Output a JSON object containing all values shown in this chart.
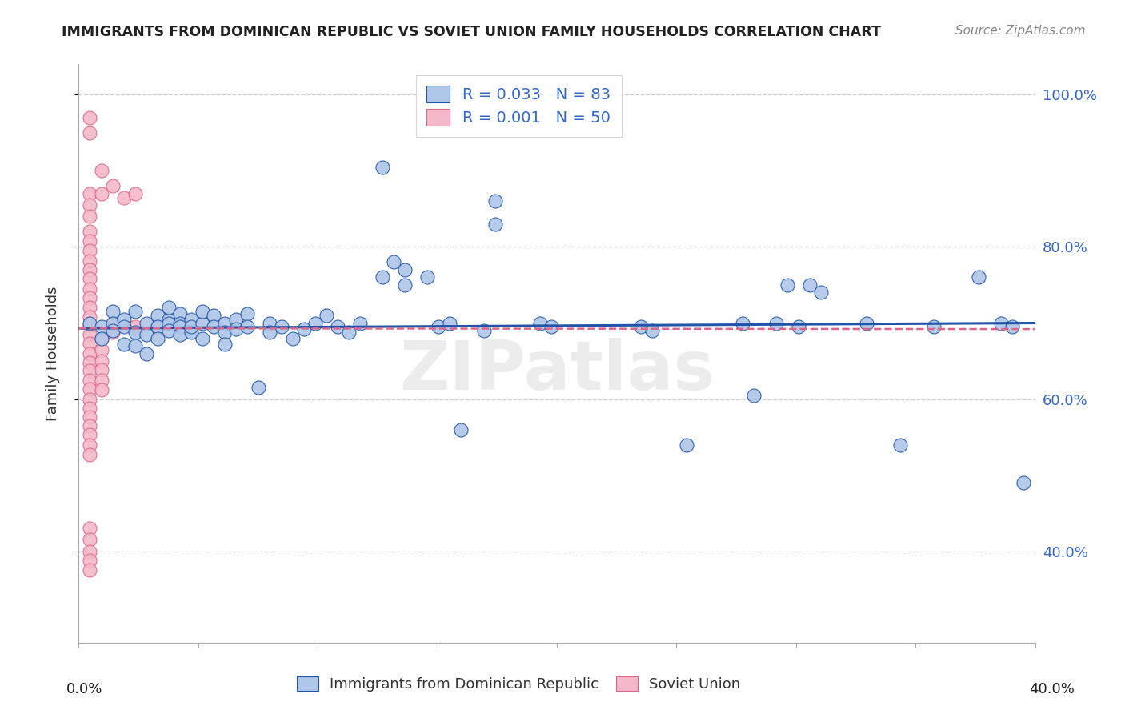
{
  "title": "IMMIGRANTS FROM DOMINICAN REPUBLIC VS SOVIET UNION FAMILY HOUSEHOLDS CORRELATION CHART",
  "source": "Source: ZipAtlas.com",
  "ylabel": "Family Households",
  "legend1_R": "0.033",
  "legend1_N": "83",
  "legend2_R": "0.001",
  "legend2_N": "50",
  "blue_color": "#aec6e8",
  "blue_line_color": "#2255aa",
  "pink_color": "#f5b8c8",
  "pink_line_color": "#dd6688",
  "blue_scatter": [
    [
      0.001,
      0.7
    ],
    [
      0.002,
      0.695
    ],
    [
      0.002,
      0.68
    ],
    [
      0.003,
      0.715
    ],
    [
      0.003,
      0.7
    ],
    [
      0.003,
      0.69
    ],
    [
      0.004,
      0.705
    ],
    [
      0.004,
      0.695
    ],
    [
      0.004,
      0.672
    ],
    [
      0.005,
      0.688
    ],
    [
      0.005,
      0.67
    ],
    [
      0.005,
      0.715
    ],
    [
      0.006,
      0.7
    ],
    [
      0.006,
      0.685
    ],
    [
      0.006,
      0.66
    ],
    [
      0.007,
      0.71
    ],
    [
      0.007,
      0.695
    ],
    [
      0.007,
      0.68
    ],
    [
      0.008,
      0.705
    ],
    [
      0.008,
      0.72
    ],
    [
      0.008,
      0.7
    ],
    [
      0.008,
      0.69
    ],
    [
      0.009,
      0.712
    ],
    [
      0.009,
      0.7
    ],
    [
      0.009,
      0.695
    ],
    [
      0.009,
      0.685
    ],
    [
      0.01,
      0.705
    ],
    [
      0.01,
      0.688
    ],
    [
      0.01,
      0.695
    ],
    [
      0.011,
      0.7
    ],
    [
      0.011,
      0.715
    ],
    [
      0.011,
      0.68
    ],
    [
      0.012,
      0.71
    ],
    [
      0.012,
      0.695
    ],
    [
      0.013,
      0.7
    ],
    [
      0.013,
      0.688
    ],
    [
      0.013,
      0.672
    ],
    [
      0.014,
      0.705
    ],
    [
      0.014,
      0.692
    ],
    [
      0.015,
      0.712
    ],
    [
      0.015,
      0.695
    ],
    [
      0.016,
      0.615
    ],
    [
      0.017,
      0.7
    ],
    [
      0.017,
      0.688
    ],
    [
      0.018,
      0.695
    ],
    [
      0.019,
      0.68
    ],
    [
      0.02,
      0.692
    ],
    [
      0.021,
      0.7
    ],
    [
      0.022,
      0.71
    ],
    [
      0.023,
      0.695
    ],
    [
      0.024,
      0.688
    ],
    [
      0.025,
      0.7
    ],
    [
      0.027,
      0.905
    ],
    [
      0.027,
      0.76
    ],
    [
      0.028,
      0.78
    ],
    [
      0.029,
      0.77
    ],
    [
      0.029,
      0.75
    ],
    [
      0.031,
      0.76
    ],
    [
      0.032,
      0.695
    ],
    [
      0.033,
      0.7
    ],
    [
      0.034,
      0.56
    ],
    [
      0.036,
      0.69
    ],
    [
      0.037,
      0.86
    ],
    [
      0.037,
      0.83
    ],
    [
      0.041,
      0.7
    ],
    [
      0.042,
      0.695
    ],
    [
      0.05,
      0.695
    ],
    [
      0.051,
      0.69
    ],
    [
      0.054,
      0.54
    ],
    [
      0.059,
      0.7
    ],
    [
      0.06,
      0.605
    ],
    [
      0.062,
      0.7
    ],
    [
      0.063,
      0.75
    ],
    [
      0.064,
      0.695
    ],
    [
      0.065,
      0.75
    ],
    [
      0.066,
      0.74
    ],
    [
      0.07,
      0.7
    ],
    [
      0.073,
      0.54
    ],
    [
      0.076,
      0.695
    ],
    [
      0.08,
      0.76
    ],
    [
      0.082,
      0.7
    ],
    [
      0.083,
      0.695
    ],
    [
      0.084,
      0.49
    ]
  ],
  "pink_scatter": [
    [
      0.001,
      0.97
    ],
    [
      0.001,
      0.95
    ],
    [
      0.001,
      0.87
    ],
    [
      0.001,
      0.855
    ],
    [
      0.001,
      0.84
    ],
    [
      0.001,
      0.82
    ],
    [
      0.001,
      0.808
    ],
    [
      0.001,
      0.795
    ],
    [
      0.001,
      0.782
    ],
    [
      0.001,
      0.77
    ],
    [
      0.001,
      0.758
    ],
    [
      0.001,
      0.745
    ],
    [
      0.001,
      0.733
    ],
    [
      0.001,
      0.72
    ],
    [
      0.001,
      0.708
    ],
    [
      0.001,
      0.697
    ],
    [
      0.001,
      0.685
    ],
    [
      0.001,
      0.673
    ],
    [
      0.001,
      0.66
    ],
    [
      0.001,
      0.648
    ],
    [
      0.001,
      0.637
    ],
    [
      0.001,
      0.625
    ],
    [
      0.001,
      0.613
    ],
    [
      0.001,
      0.6
    ],
    [
      0.001,
      0.588
    ],
    [
      0.001,
      0.576
    ],
    [
      0.001,
      0.565
    ],
    [
      0.001,
      0.553
    ],
    [
      0.001,
      0.54
    ],
    [
      0.001,
      0.527
    ],
    [
      0.001,
      0.43
    ],
    [
      0.001,
      0.415
    ],
    [
      0.001,
      0.4
    ],
    [
      0.001,
      0.388
    ],
    [
      0.001,
      0.375
    ],
    [
      0.002,
      0.9
    ],
    [
      0.002,
      0.87
    ],
    [
      0.002,
      0.68
    ],
    [
      0.002,
      0.665
    ],
    [
      0.002,
      0.65
    ],
    [
      0.002,
      0.638
    ],
    [
      0.002,
      0.625
    ],
    [
      0.002,
      0.612
    ],
    [
      0.003,
      0.88
    ],
    [
      0.003,
      0.7
    ],
    [
      0.003,
      0.688
    ],
    [
      0.004,
      0.865
    ],
    [
      0.005,
      0.87
    ],
    [
      0.005,
      0.695
    ],
    [
      0.007,
      0.695
    ]
  ],
  "blue_trend_x": [
    0.0,
    0.085
  ],
  "blue_trend_y": [
    0.693,
    0.7
  ],
  "pink_trend_x": [
    0.0,
    0.085
  ],
  "pink_trend_y": [
    0.693,
    0.692
  ],
  "xlim": [
    0.0,
    0.085
  ],
  "ylim": [
    0.28,
    1.04
  ],
  "ytick_vals": [
    0.4,
    0.6,
    0.8,
    1.0
  ],
  "ytick_labels": [
    "40.0%",
    "60.0%",
    "80.0%",
    "100.0%"
  ],
  "watermark": "ZIPatlas",
  "figsize": [
    14.06,
    8.92
  ],
  "dpi": 100
}
